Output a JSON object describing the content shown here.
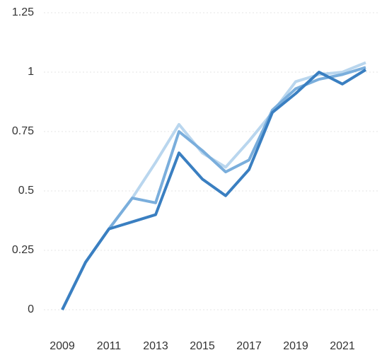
{
  "chart_data": {
    "type": "line",
    "x": [
      2009,
      2010,
      2011,
      2012,
      2013,
      2014,
      2015,
      2016,
      2017,
      2018,
      2019,
      2020,
      2021,
      2022
    ],
    "series": [
      {
        "color": "#b9d6ee",
        "values": [
          0,
          0.2,
          0.34,
          0.47,
          0.62,
          0.78,
          0.66,
          0.6,
          0.71,
          0.83,
          0.96,
          0.99,
          1.0,
          1.04
        ]
      },
      {
        "color": "#7aaedc",
        "values": [
          0,
          0.2,
          0.34,
          0.47,
          0.45,
          0.75,
          0.67,
          0.58,
          0.63,
          0.84,
          0.93,
          0.97,
          0.99,
          1.02
        ]
      },
      {
        "color": "#3a7fc1",
        "values": [
          0,
          0.2,
          0.34,
          0.37,
          0.4,
          0.66,
          0.55,
          0.48,
          0.59,
          0.83,
          0.91,
          1.0,
          0.95,
          1.01
        ]
      }
    ],
    "xlim": [
      2009,
      2022
    ],
    "xticks": [
      2009,
      2011,
      2013,
      2015,
      2017,
      2019,
      2021
    ],
    "ylim": [
      0,
      1.25
    ],
    "yticks": [
      0,
      0.25,
      0.5,
      0.75,
      1,
      1.25
    ],
    "grid": true
  }
}
